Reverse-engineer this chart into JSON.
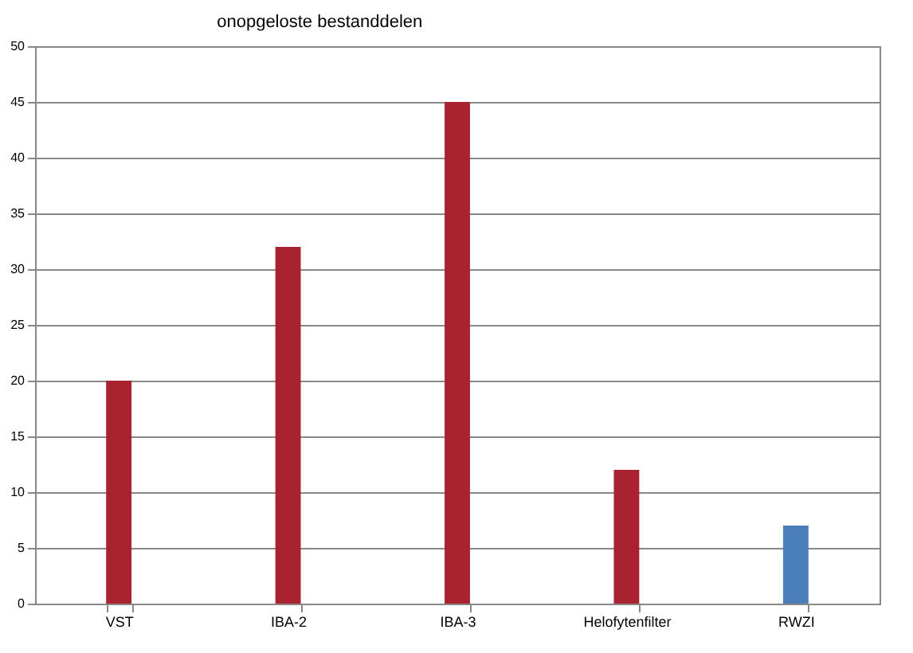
{
  "chart_data": {
    "type": "bar",
    "title": "onopgeloste bestanddelen",
    "categories": [
      "VST",
      "IBA-2",
      "IBA-3",
      "Helofytenfilter",
      "RWZI"
    ],
    "values": [
      20,
      32,
      45,
      12,
      7
    ],
    "colors": [
      "#a8232f",
      "#a8232f",
      "#a8232f",
      "#a8232f",
      "#4a7ebb"
    ],
    "ylim": [
      0,
      50
    ],
    "yticks": [
      0,
      5,
      10,
      15,
      20,
      25,
      30,
      35,
      40,
      45,
      50
    ],
    "grid": "y"
  }
}
